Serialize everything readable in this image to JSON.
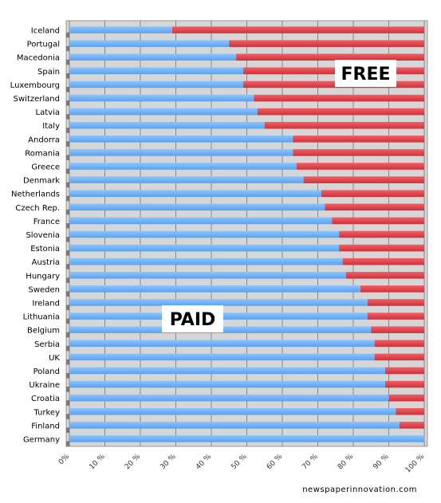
{
  "chart_data": {
    "type": "bar",
    "orientation": "horizontal",
    "stacked": true,
    "categories": [
      "Iceland",
      "Portugal",
      "Macedonia",
      "Spain",
      "Luxembourg",
      "Switzerland",
      "Latvia",
      "Italy",
      "Andorra",
      "Romania",
      "Greece",
      "Denmark",
      "Netherlands",
      "Czech Rep.",
      "France",
      "Slovenia",
      "Estonia",
      "Austria",
      "Hungary",
      "Sweden",
      "Ireland",
      "Lithuania",
      "Belgium",
      "Serbia",
      "UK",
      "Poland",
      "Ukraine",
      "Croatia",
      "Turkey",
      "Finland",
      "Germany"
    ],
    "series": [
      {
        "name": "PAID",
        "color": "#6cb0f7",
        "values": [
          29,
          45,
          47,
          49,
          49,
          52,
          53,
          55,
          63,
          63,
          64,
          66,
          71,
          72,
          74,
          76,
          76,
          77,
          78,
          82,
          84,
          84,
          85,
          86,
          86,
          89,
          89,
          90,
          92,
          93,
          100
        ]
      },
      {
        "name": "FREE",
        "color": "#e03c44",
        "values": [
          71,
          55,
          53,
          51,
          51,
          48,
          47,
          45,
          37,
          37,
          36,
          34,
          29,
          28,
          26,
          24,
          24,
          23,
          22,
          18,
          16,
          16,
          15,
          14,
          14,
          11,
          11,
          10,
          8,
          7,
          0
        ]
      }
    ],
    "xlim": [
      0,
      100
    ],
    "x_ticks": [
      "0%",
      "10 %",
      "20 %",
      "30 %",
      "40 %",
      "50 %",
      "60 %",
      "70 %",
      "80 %",
      "90 %",
      "100 %"
    ],
    "grid": true,
    "annotations": [
      "FREE",
      "PAID"
    ],
    "credit": "newspaperinnovation.com"
  }
}
